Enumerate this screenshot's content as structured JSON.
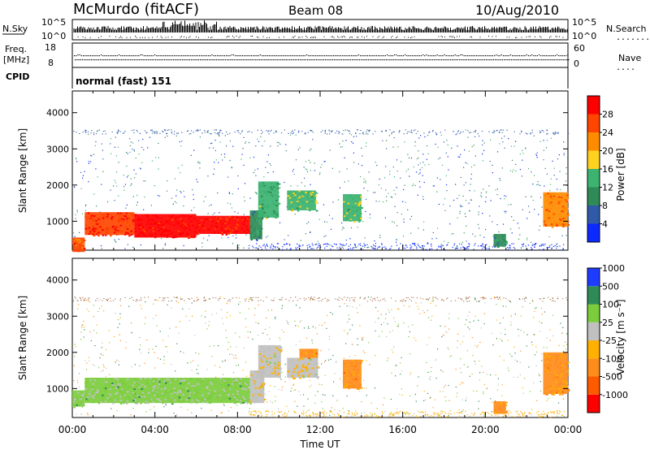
{
  "header": {
    "station": "McMurdo (fitACF)",
    "beam": "Beam 08",
    "date": "10/Aug/2010"
  },
  "nsky_panel": {
    "left_label": "N.Sky",
    "right_label": "N.Search",
    "right_marker": "........",
    "left_ticks": [
      "10^5",
      "10^0"
    ],
    "right_ticks": [
      "10^5",
      "10^0"
    ]
  },
  "freq_panel": {
    "label_line1": "Freq.",
    "label_line2": "[MHz]",
    "left_ticks": [
      "18",
      "8"
    ],
    "right_label": "Nave",
    "right_marker": "....",
    "right_ticks": [
      "60",
      "0"
    ]
  },
  "cpid_panel": {
    "label": "CPID",
    "text": "normal (fast) 151"
  },
  "power_panel": {
    "ylabel": "Slant Range [km]",
    "yticks": [
      "1000",
      "2000",
      "3000",
      "4000"
    ],
    "colorbar_label": "Power [dB]",
    "colorbar_ticks": [
      "4",
      "8",
      "12",
      "16",
      "20",
      "24",
      "28"
    ],
    "colorbar_colors": [
      "#0a2aff",
      "#2f5aa8",
      "#2e8b57",
      "#3cb371",
      "#ffd21f",
      "#ff8c00",
      "#ff4500",
      "#ff0000"
    ]
  },
  "velocity_panel": {
    "ylabel": "Slant Range [km]",
    "yticks": [
      "1000",
      "2000",
      "3000",
      "4000"
    ],
    "colorbar_label": "Velocity [m s⁻¹]",
    "colorbar_ticks": [
      "-1000",
      "-500",
      "-100",
      "-25",
      "25",
      "100",
      "500",
      "1000"
    ],
    "colorbar_colors": [
      "#ff0000",
      "#ff5a00",
      "#ff8c1a",
      "#ffb000",
      "#c0c0c0",
      "#7ccd3c",
      "#2e8b57",
      "#1e3cff"
    ]
  },
  "xaxis": {
    "label": "Time UT",
    "ticks": [
      "00:00",
      "04:00",
      "08:00",
      "12:00",
      "16:00",
      "20:00",
      "00:00"
    ]
  },
  "chart_data": [
    {
      "type": "heatmap",
      "name": "Power",
      "xlabel": "Time UT",
      "ylabel": "Slant Range [km]",
      "xlim_hours": [
        0,
        24
      ],
      "ylim": [
        200,
        4600
      ],
      "clim": [
        0,
        30
      ],
      "regions": [
        {
          "t0": 0.0,
          "t1": 0.6,
          "r0": 150,
          "r1": 550,
          "value": 24
        },
        {
          "t0": 0.6,
          "t1": 3.0,
          "r0": 620,
          "r1": 1250,
          "value": 26
        },
        {
          "t0": 3.0,
          "t1": 6.0,
          "r0": 550,
          "r1": 1200,
          "value": 29
        },
        {
          "t0": 6.0,
          "t1": 8.6,
          "r0": 650,
          "r1": 1150,
          "value": 27
        },
        {
          "t0": 8.6,
          "t1": 9.2,
          "r0": 500,
          "r1": 1300,
          "value": 10
        },
        {
          "t0": 9.0,
          "t1": 10.0,
          "r0": 1100,
          "r1": 2100,
          "value": 12
        },
        {
          "t0": 10.4,
          "t1": 11.8,
          "r0": 1300,
          "r1": 1850,
          "value": 14
        },
        {
          "t0": 13.1,
          "t1": 14.0,
          "r0": 1000,
          "r1": 1750,
          "value": 14
        },
        {
          "t0": 20.4,
          "t1": 21.0,
          "r0": 300,
          "r1": 650,
          "value": 10
        },
        {
          "t0": 22.8,
          "t1": 24.0,
          "r0": 850,
          "r1": 1800,
          "value": 22
        }
      ]
    },
    {
      "type": "heatmap",
      "name": "Velocity",
      "xlabel": "Time UT",
      "ylabel": "Slant Range [km]",
      "xlim_hours": [
        0,
        24
      ],
      "ylim": [
        200,
        4600
      ],
      "clim": [
        -1000,
        1000
      ],
      "regions": [
        {
          "t0": 0.0,
          "t1": 0.6,
          "r0": 500,
          "r1": 950,
          "value": 300
        },
        {
          "t0": 0.6,
          "t1": 8.6,
          "r0": 600,
          "r1": 1300,
          "value": 300
        },
        {
          "t0": 8.6,
          "t1": 9.3,
          "r0": 600,
          "r1": 1500,
          "value": 60
        },
        {
          "t0": 9.0,
          "t1": 10.1,
          "r0": 1300,
          "r1": 2200,
          "value": 60
        },
        {
          "t0": 10.4,
          "t1": 11.9,
          "r0": 1300,
          "r1": 1850,
          "value": 60
        },
        {
          "t0": 11.0,
          "t1": 11.9,
          "r0": 1850,
          "r1": 2100,
          "value": -300
        },
        {
          "t0": 13.1,
          "t1": 14.0,
          "r0": 1000,
          "r1": 1800,
          "value": -300
        },
        {
          "t0": 20.4,
          "t1": 21.0,
          "r0": 300,
          "r1": 650,
          "value": -300
        },
        {
          "t0": 22.8,
          "t1": 24.0,
          "r0": 850,
          "r1": 2000,
          "value": -300
        }
      ]
    }
  ]
}
